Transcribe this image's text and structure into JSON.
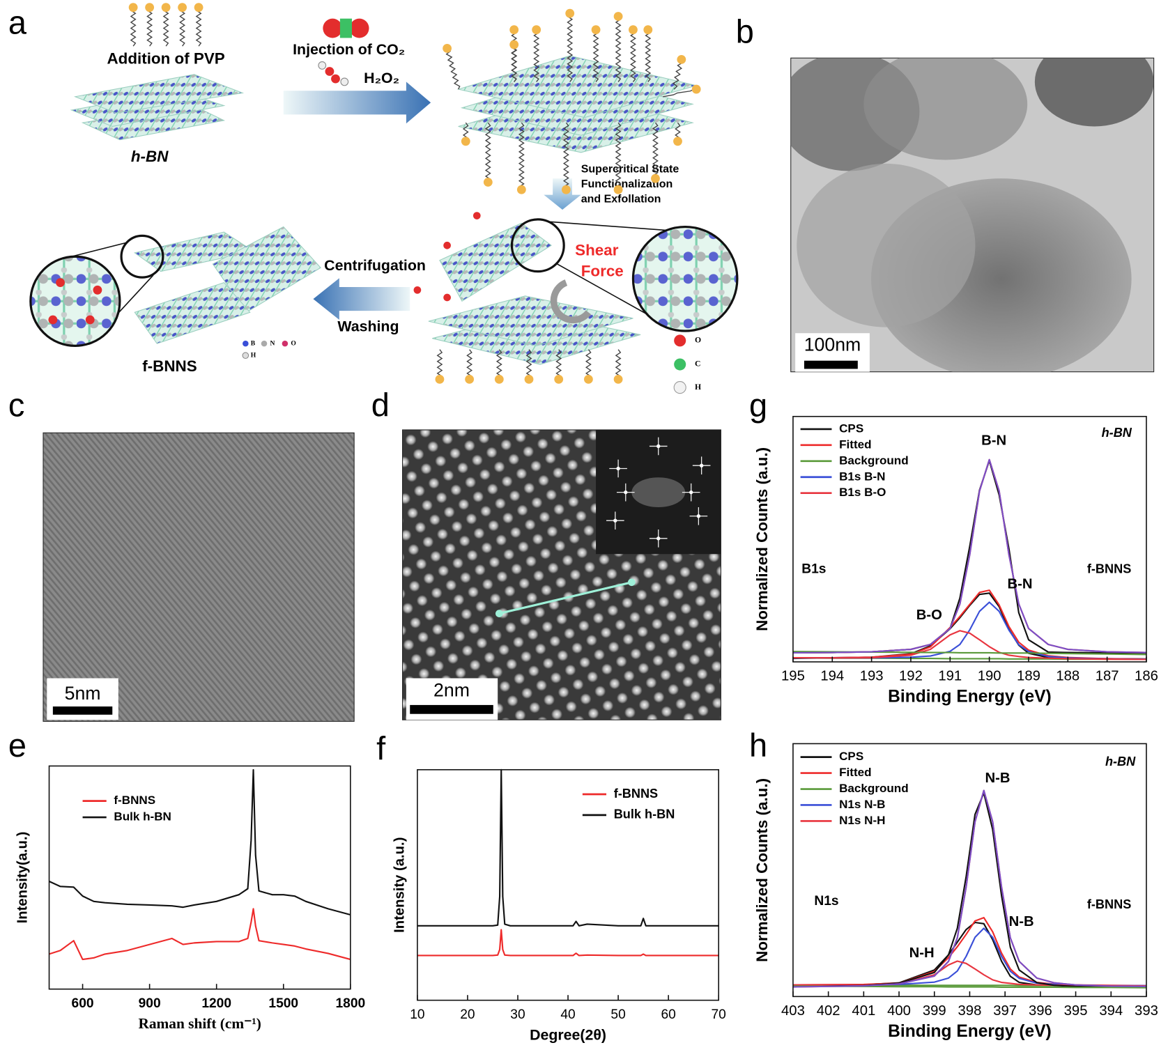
{
  "figure": {
    "panel_labels": [
      "a",
      "b",
      "c",
      "d",
      "e",
      "f",
      "g",
      "h"
    ],
    "scheme": {
      "addition": "Addition of PVP",
      "injection": "Injection of CO₂",
      "oxidant": "H₂O₂",
      "start": "h-BN",
      "process": [
        "Supercritical State",
        "Functionalization",
        "and Exfollation"
      ],
      "shear": [
        "Shear",
        "Force"
      ],
      "centrifugation": "Centrifugation",
      "washing": "Washing",
      "product": "f-BNNS",
      "atom_legend": [
        "B",
        "N",
        "O",
        "H"
      ],
      "atom_legend_2": [
        "O",
        "C",
        "H"
      ]
    },
    "scale_bars": {
      "b": "100nm",
      "c": "5nm",
      "d": "2nm"
    }
  },
  "chart_data": [
    {
      "type": "line",
      "x_label": "Raman shift (cm⁻¹)",
      "y_label": "Intensity(a.u.)",
      "xlim": [
        450,
        1800
      ],
      "xticks": [
        600,
        900,
        1200,
        1500,
        1800
      ],
      "ylim": [
        0,
        100
      ],
      "grid": false,
      "legend": "upper left",
      "x": [
        450,
        500,
        560,
        600,
        650,
        700,
        800,
        900,
        1000,
        1050,
        1100,
        1200,
        1300,
        1340,
        1355,
        1365,
        1375,
        1390,
        1450,
        1500,
        1550,
        1600,
        1700,
        1800
      ],
      "series": [
        {
          "name": "f-BNNS",
          "color": "#ee2a2a",
          "values": [
            15.7,
            17.3,
            21.7,
            13.3,
            14.0,
            15.7,
            17.3,
            20.0,
            22.7,
            20.0,
            20.7,
            21.3,
            21.3,
            22.7,
            30.0,
            36.0,
            28.3,
            21.7,
            20.7,
            20.0,
            19.3,
            18.0,
            16.0,
            13.3
          ]
        },
        {
          "name": "Bulk h-BN",
          "color": "#111111",
          "values": [
            48.3,
            46.0,
            45.7,
            41.7,
            39.3,
            38.7,
            38.0,
            37.7,
            37.3,
            36.7,
            37.7,
            39.3,
            42.3,
            45.0,
            66.7,
            98.3,
            60.0,
            44.0,
            42.3,
            42.3,
            41.7,
            39.3,
            36.0,
            33.3
          ]
        }
      ]
    },
    {
      "type": "line",
      "x_label": "Degree(2θ)",
      "y_label": "Intensity (a.u.)",
      "xlim": [
        10,
        70
      ],
      "xticks": [
        10,
        20,
        30,
        40,
        50,
        60,
        70
      ],
      "ylim": [
        0,
        100
      ],
      "grid": false,
      "legend": "upper right",
      "x": [
        10,
        20,
        25,
        26,
        26.4,
        26.7,
        27.0,
        27.4,
        28.5,
        35,
        41,
        41.6,
        42.2,
        43.8,
        50,
        54.5,
        55,
        55.5,
        60,
        70
      ],
      "series": [
        {
          "name": "f-BNNS",
          "color": "#ee2a2a",
          "values": [
            19.4,
            19.4,
            19.4,
            19.6,
            22,
            30.6,
            22,
            19.6,
            19.4,
            19.4,
            19.4,
            20.4,
            19.4,
            19.6,
            19.4,
            19.4,
            20.0,
            19.4,
            19.4,
            19.4
          ]
        },
        {
          "name": "Bulk h-BN",
          "color": "#111111",
          "values": [
            32.3,
            32.3,
            32.3,
            32.6,
            45,
            100,
            45,
            33,
            32.3,
            32.3,
            32.3,
            34.2,
            32.3,
            33.0,
            32.3,
            32.3,
            35.5,
            32.3,
            32.3,
            32.3
          ]
        }
      ]
    },
    {
      "type": "line",
      "x_label": "Binding Energy (eV)",
      "y_label": "Normalized Counts (a.u.)",
      "xlim": [
        195,
        186
      ],
      "xticks": [
        195,
        194,
        193,
        192,
        191,
        190,
        189,
        188,
        187,
        186
      ],
      "ylim": [
        0,
        100
      ],
      "grid": false,
      "legend": "upper left",
      "annotations": [
        "h-BN",
        "B-N",
        "B1s",
        "f-BNNS",
        "B-N",
        "B-O"
      ],
      "x": [
        195,
        194,
        193,
        192,
        191.5,
        191,
        190.75,
        190.5,
        190.25,
        190,
        189.75,
        189.5,
        189.25,
        189,
        188.5,
        188,
        187,
        186
      ],
      "series": [
        {
          "name": "CPS",
          "color": "#111111",
          "values": [
            1.4,
            1.7,
            1.9,
            3.3,
            6.5,
            13.5,
            18.0,
            23.0,
            27.5,
            28.0,
            22.5,
            13.2,
            6.8,
            3.5,
            1.8,
            1.4,
            1.3,
            1.2
          ]
        },
        {
          "name": "Fitted",
          "color": "#ee2a2a",
          "values": [
            1.7,
            1.7,
            1.9,
            3.1,
            6.1,
            14.0,
            18.5,
            23.4,
            28.3,
            29.2,
            23.2,
            14.4,
            8.0,
            4.8,
            2.5,
            1.8,
            1.3,
            1.1
          ]
        },
        {
          "name": "Background",
          "color": "#5a9a3a",
          "values": [
            1.6,
            1.5,
            1.5,
            1.4,
            1.4,
            1.3,
            1.3,
            1.3,
            1.3,
            1.3,
            1.3,
            1.2,
            1.2,
            1.2,
            1.2,
            1.1,
            1.1,
            1.0
          ]
        },
        {
          "name": "B1s B-N",
          "color": "#3a4fd8",
          "values": [
            1.6,
            1.6,
            1.6,
            1.9,
            2.4,
            4.3,
            7.1,
            13.0,
            20.6,
            24.3,
            20.6,
            12.9,
            7.0,
            4.2,
            2.2,
            1.6,
            1.2,
            1.1
          ]
        },
        {
          "name": "B1s B-O",
          "color": "#e8343e",
          "values": [
            1.7,
            1.6,
            1.7,
            2.7,
            5.1,
            11.0,
            12.7,
            11.7,
            9.0,
            6.2,
            3.9,
            2.7,
            2.2,
            1.8,
            1.5,
            1.3,
            1.1,
            1.0
          ]
        },
        {
          "color": "#111111",
          "values": [
            3.7,
            3.8,
            4.1,
            5.1,
            7.1,
            13.6,
            26.0,
            47.0,
            70.0,
            82.0,
            68.0,
            46.0,
            20.0,
            9.0,
            4.0,
            3.8,
            3.7,
            3.6
          ]
        },
        {
          "color": "#ee2a2a",
          "values": [
            3.7,
            3.8,
            4.1,
            5.1,
            7.1,
            13.6,
            23.6,
            43.6,
            69.6,
            82.4,
            69.6,
            43.6,
            23.6,
            13.6,
            7.1,
            5.1,
            4.1,
            3.8
          ]
        },
        {
          "color": "#5a9a3a",
          "values": [
            4.2,
            4.1,
            4.0,
            3.9,
            3.8,
            3.8,
            3.7,
            3.7,
            3.7,
            3.7,
            3.6,
            3.6,
            3.6,
            3.6,
            3.5,
            3.4,
            3.2,
            3.0
          ]
        },
        {
          "color": "#7a4fc8",
          "values": [
            3.7,
            3.8,
            4.1,
            5.1,
            7.1,
            13.6,
            23.6,
            43.6,
            69.6,
            82.4,
            69.6,
            43.6,
            23.6,
            13.6,
            7.1,
            5.1,
            4.1,
            3.8
          ]
        }
      ]
    },
    {
      "type": "line",
      "x_label": "Binding Energy (eV)",
      "y_label": "Normalized Counts (a.u.)",
      "xlim": [
        403,
        393
      ],
      "xticks": [
        403,
        402,
        401,
        400,
        399,
        398,
        397,
        396,
        395,
        394,
        393
      ],
      "ylim": [
        0,
        100
      ],
      "grid": false,
      "legend": "upper left",
      "annotations": [
        "h-BN",
        "N-B",
        "N1s",
        "f-BNNS",
        "N-B",
        "N-H"
      ],
      "x": [
        403,
        401,
        400,
        399,
        398.6,
        398.35,
        398.1,
        397.85,
        397.6,
        397.35,
        397.1,
        396.85,
        396.6,
        396.1,
        395.6,
        395,
        394,
        393
      ],
      "series": [
        {
          "name": "CPS",
          "color": "#111111",
          "values": [
            4.5,
            4.7,
            5.4,
            10.5,
            16.5,
            21.5,
            26.5,
            29.3,
            28.8,
            22.5,
            14.0,
            8.0,
            5.6,
            4.6,
            4.4,
            4.3,
            4.2,
            4.1
          ]
        },
        {
          "name": "Fitted",
          "color": "#ee2a2a",
          "values": [
            4.6,
            4.8,
            5.3,
            9.9,
            15.4,
            19.7,
            24.6,
            29.9,
            31.2,
            25.6,
            17.2,
            10.9,
            7.7,
            5.6,
            4.9,
            4.6,
            4.4,
            4.3
          ]
        },
        {
          "name": "Background",
          "color": "#5a9a3a",
          "values": [
            4.6,
            4.5,
            4.5,
            4.4,
            4.4,
            4.4,
            4.4,
            4.4,
            4.4,
            4.4,
            4.4,
            4.4,
            4.3,
            4.3,
            4.3,
            4.3,
            4.2,
            4.2
          ]
        },
        {
          "name": "N1s N-B",
          "color": "#3a4fd8",
          "values": [
            4.6,
            4.6,
            4.8,
            5.7,
            7.3,
            10.1,
            15.9,
            23.4,
            27.0,
            23.4,
            15.9,
            10.0,
            7.2,
            5.3,
            4.8,
            4.5,
            4.3,
            4.3
          ]
        },
        {
          "name": "N1s N-H",
          "color": "#e8343e",
          "values": [
            4.6,
            4.7,
            5.0,
            8.6,
            12.5,
            14.0,
            13.1,
            10.9,
            8.6,
            6.6,
            5.6,
            5.2,
            4.8,
            4.6,
            4.5,
            4.4,
            4.3,
            4.2
          ]
        },
        {
          "color": "#111111",
          "values": [
            3.9,
            4.3,
            5.3,
            9.5,
            16.5,
            27.0,
            47.5,
            72.0,
            80.5,
            66.0,
            40.0,
            19.5,
            10.5,
            5.5,
            4.4,
            4.0,
            3.9,
            3.8
          ]
        },
        {
          "color": "#ee2a2a",
          "values": [
            3.8,
            4.2,
            5.0,
            8.1,
            13.9,
            23.2,
            43.4,
            69.1,
            81.5,
            69.1,
            43.4,
            23.2,
            13.9,
            7.3,
            5.4,
            4.6,
            4.1,
            4.0
          ]
        },
        {
          "color": "#5a9a3a",
          "values": [
            4.1,
            4.0,
            3.9,
            3.9,
            3.8,
            3.8,
            3.8,
            3.8,
            3.8,
            3.8,
            3.7,
            3.7,
            3.7,
            3.7,
            3.7,
            3.6,
            3.6,
            3.5
          ]
        },
        {
          "color": "#7a4fc8",
          "values": [
            3.8,
            4.2,
            5.0,
            8.1,
            13.9,
            23.2,
            43.4,
            69.1,
            81.5,
            69.1,
            43.4,
            23.2,
            13.9,
            7.3,
            5.4,
            4.6,
            4.1,
            4.0
          ]
        }
      ]
    }
  ]
}
